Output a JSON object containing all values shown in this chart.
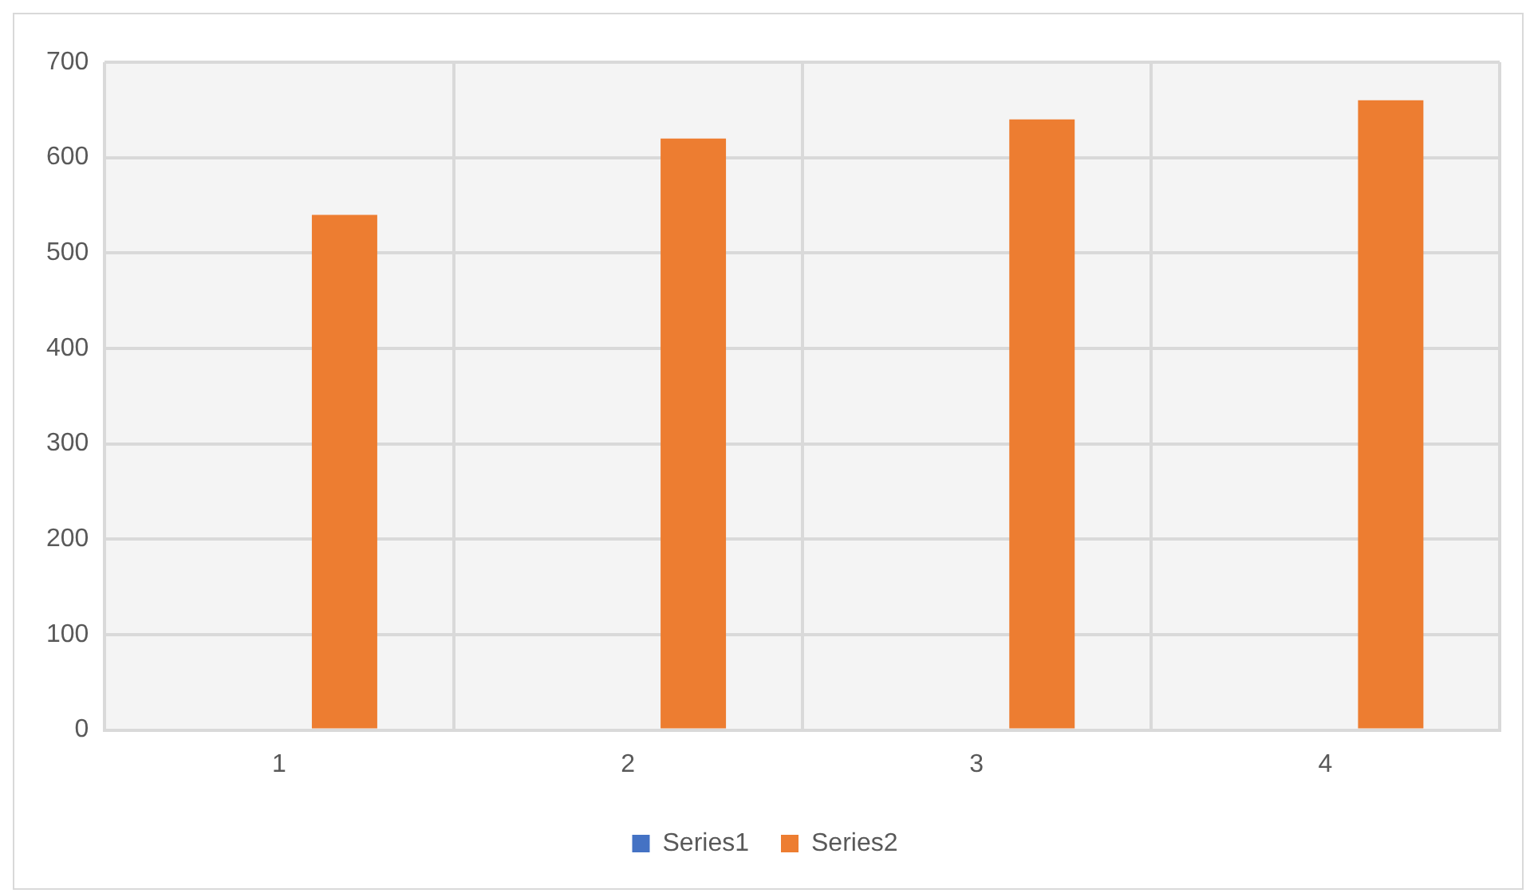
{
  "chart_data": {
    "type": "bar",
    "categories": [
      "1",
      "2",
      "3",
      "4"
    ],
    "series": [
      {
        "name": "Series1",
        "color": "#4472c4",
        "values": [
          0,
          0,
          0,
          0
        ]
      },
      {
        "name": "Series2",
        "color": "#ed7d31",
        "values": [
          540,
          620,
          640,
          660
        ]
      }
    ],
    "ylim": [
      0,
      700
    ],
    "yticks": [
      0,
      100,
      200,
      300,
      400,
      500,
      600,
      700
    ],
    "grid": true,
    "legend": "bottom"
  }
}
